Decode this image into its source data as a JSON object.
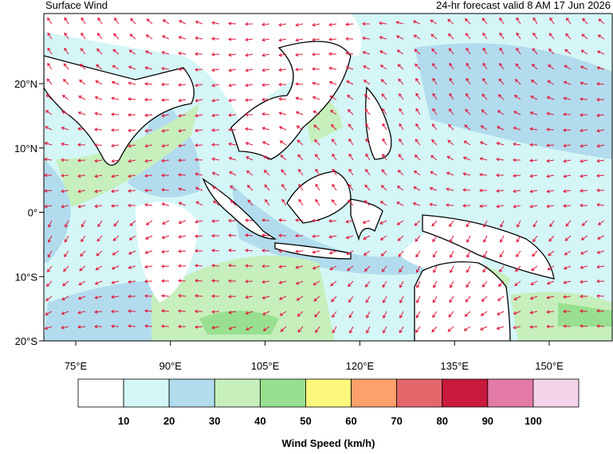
{
  "header": {
    "title": "Surface Wind",
    "subtitle": "24-hr forecast valid 8 AM 17 Jun 2026"
  },
  "map": {
    "lat_labels": [
      "20°N",
      "10°N",
      "0°",
      "10°S",
      "20°S"
    ],
    "lon_labels": [
      "75°E",
      "90°E",
      "105°E",
      "120°E",
      "135°E",
      "150°E"
    ]
  },
  "colorbar": {
    "title": "Wind Speed (km/h)",
    "colors": [
      "#ffffff",
      "#d4f6f6",
      "#b2dced",
      "#c6efbc",
      "#98e090",
      "#fdf87c",
      "#fda06c",
      "#e3676b",
      "#c9193c",
      "#e37aa6",
      "#f4d3ea"
    ],
    "labels": [
      10,
      20,
      30,
      40,
      50,
      60,
      70,
      80,
      90,
      100
    ]
  }
}
